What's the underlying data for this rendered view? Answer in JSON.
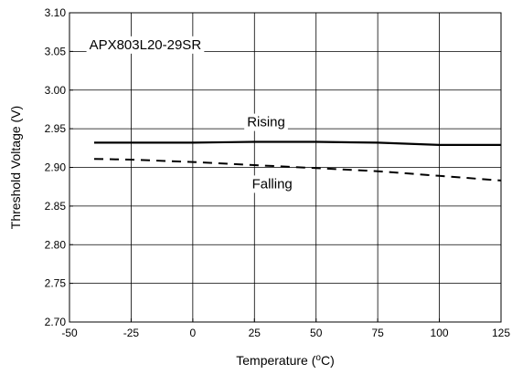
{
  "chart_data": {
    "type": "line",
    "title": "",
    "xlabel": "Temperature (°C)",
    "xlabel_parts": {
      "before": "Temperature (",
      "superscript": "o",
      "after": "C)"
    },
    "ylabel": "Threshold Voltage (V)",
    "xlim": [
      -50,
      125
    ],
    "ylim": [
      2.7,
      3.1
    ],
    "x_ticks": [
      -50,
      -25,
      0,
      25,
      50,
      75,
      100,
      125
    ],
    "y_ticks": [
      2.7,
      2.75,
      2.8,
      2.85,
      2.9,
      2.95,
      3.0,
      3.05,
      3.1
    ],
    "x_tick_labels": [
      "-50",
      "-25",
      "0",
      "25",
      "50",
      "75",
      "100",
      "125"
    ],
    "y_tick_labels": [
      "2.70",
      "2.75",
      "2.80",
      "2.85",
      "2.90",
      "2.95",
      "3.00",
      "3.05",
      "3.10"
    ],
    "grid": true,
    "series": [
      {
        "name": "Rising",
        "style": "solid",
        "color": "#000000",
        "x": [
          -40,
          -25,
          0,
          25,
          50,
          75,
          100,
          125
        ],
        "y": [
          2.932,
          2.932,
          2.932,
          2.933,
          2.933,
          2.932,
          2.929,
          2.929
        ]
      },
      {
        "name": "Falling",
        "style": "dashed",
        "color": "#000000",
        "x": [
          -40,
          -25,
          0,
          25,
          50,
          75,
          100,
          125
        ],
        "y": [
          2.911,
          2.91,
          2.907,
          2.903,
          2.899,
          2.895,
          2.889,
          2.883
        ]
      }
    ],
    "annotations": [
      {
        "text": "APX803L20-29SR",
        "x": -42,
        "y": 3.053
      },
      {
        "text": "Rising",
        "x": 22,
        "y": 2.953
      },
      {
        "text": "Falling",
        "x": 24,
        "y": 2.873
      }
    ]
  }
}
